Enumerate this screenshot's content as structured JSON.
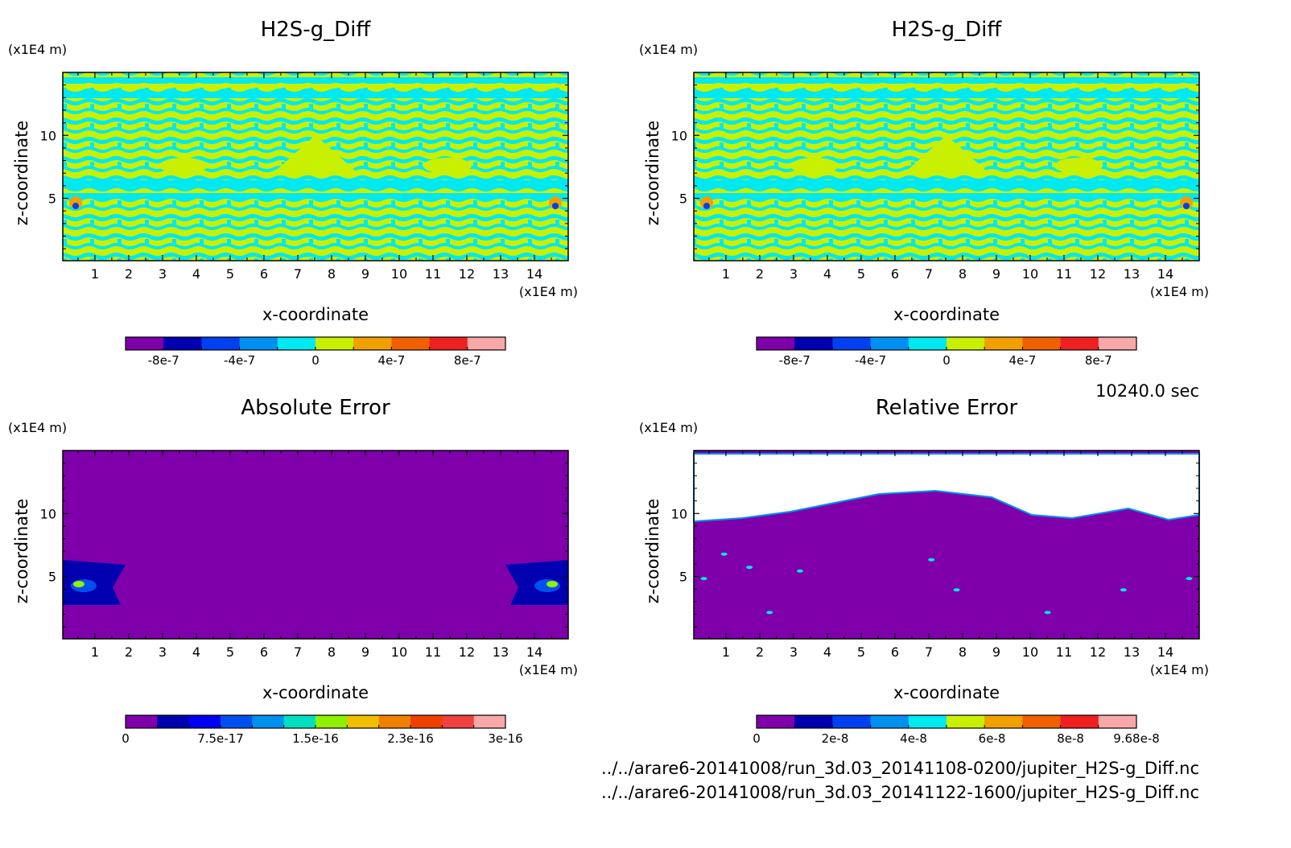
{
  "chart_data": [
    {
      "type": "heatmap",
      "title": "H2S-g_Diff",
      "xlabel": "x-coordinate",
      "ylabel": "z-coordinate",
      "x_unit": "(x1E4 m)",
      "y_unit": "(x1E4 m)",
      "xlim": [
        0.05,
        15.0
      ],
      "ylim": [
        0.05,
        15.0
      ],
      "x_ticks": [
        "1",
        "2",
        "3",
        "4",
        "5",
        "6",
        "7",
        "8",
        "9",
        "10",
        "11",
        "12",
        "13",
        "14"
      ],
      "y_ticks": [
        "5",
        "10"
      ],
      "colorbar": {
        "levels": 11,
        "colors": [
          "#7f00aa",
          "#0000b0",
          "#0040f0",
          "#0090f0",
          "#00e8f0",
          "#c8f000",
          "#f0a000",
          "#f06000",
          "#f02020",
          "#f8a8a8"
        ],
        "tick_labels": [
          "-8e-7",
          "-4e-7",
          "0",
          "4e-7",
          "8e-7"
        ],
        "tick_positions": [
          0.1,
          0.3,
          0.5,
          0.7,
          0.9
        ]
      },
      "pattern": "banded"
    },
    {
      "type": "heatmap",
      "title": "H2S-g_Diff",
      "xlabel": "x-coordinate",
      "ylabel": "z-coordinate",
      "x_unit": "(x1E4 m)",
      "y_unit": "(x1E4 m)",
      "xlim": [
        0.05,
        15.0
      ],
      "ylim": [
        0.05,
        15.0
      ],
      "x_ticks": [
        "1",
        "2",
        "3",
        "4",
        "5",
        "6",
        "7",
        "8",
        "9",
        "10",
        "11",
        "12",
        "13",
        "14"
      ],
      "y_ticks": [
        "5",
        "10"
      ],
      "colorbar": {
        "levels": 11,
        "colors": [
          "#7f00aa",
          "#0000b0",
          "#0040f0",
          "#0090f0",
          "#00e8f0",
          "#c8f000",
          "#f0a000",
          "#f06000",
          "#f02020",
          "#f8a8a8"
        ],
        "tick_labels": [
          "-8e-7",
          "-4e-7",
          "0",
          "4e-7",
          "8e-7"
        ],
        "tick_positions": [
          0.1,
          0.3,
          0.5,
          0.7,
          0.9
        ]
      },
      "pattern": "banded"
    },
    {
      "type": "heatmap",
      "title": "Absolute Error",
      "xlabel": "x-coordinate",
      "ylabel": "z-coordinate",
      "x_unit": "(x1E4 m)",
      "y_unit": "(x1E4 m)",
      "xlim": [
        0.05,
        15.0
      ],
      "ylim": [
        0.05,
        15.0
      ],
      "x_ticks": [
        "1",
        "2",
        "3",
        "4",
        "5",
        "6",
        "7",
        "8",
        "9",
        "10",
        "11",
        "12",
        "13",
        "14"
      ],
      "y_ticks": [
        "5",
        "10"
      ],
      "colorbar": {
        "levels": 13,
        "colors": [
          "#7f00aa",
          "#0000b0",
          "#0000f0",
          "#0050f0",
          "#0090f0",
          "#00e0c0",
          "#90f000",
          "#f0c000",
          "#f08000",
          "#f04000",
          "#f04040",
          "#f8a8a8"
        ],
        "tick_labels": [
          "0",
          "7.5e-17",
          "1.5e-16",
          "2.3e-16",
          "3e-16"
        ],
        "tick_positions": [
          0.0,
          0.25,
          0.5,
          0.75,
          1.0
        ]
      },
      "pattern": "absolute"
    },
    {
      "type": "heatmap",
      "title": "Relative Error",
      "xlabel": "x-coordinate",
      "ylabel": "z-coordinate",
      "x_unit": "(x1E4 m)",
      "y_unit": "(x1E4 m)",
      "xlim": [
        0.05,
        15.0
      ],
      "ylim": [
        0.05,
        15.0
      ],
      "x_ticks": [
        "1",
        "2",
        "3",
        "4",
        "5",
        "6",
        "7",
        "8",
        "9",
        "10",
        "11",
        "12",
        "13",
        "14"
      ],
      "y_ticks": [
        "5",
        "10"
      ],
      "colorbar": {
        "levels": 11,
        "colors": [
          "#7f00aa",
          "#0000b0",
          "#0040f0",
          "#0090f0",
          "#00e8f0",
          "#c8f000",
          "#f0a000",
          "#f06000",
          "#f02020",
          "#f8a8a8"
        ],
        "tick_labels": [
          "0",
          "2e-8",
          "4e-8",
          "6e-8",
          "8e-8",
          "9.68e-8"
        ],
        "tick_positions": [
          0.0,
          0.2066,
          0.4132,
          0.6198,
          0.8264,
          1.0
        ]
      },
      "pattern": "relative"
    }
  ],
  "time_label": "10240.0 sec",
  "file_paths": [
    "../../arare6-20141008/run_3d.03_20141108-0200/jupiter_H2S-g_Diff.nc",
    "../../arare6-20141008/run_3d.03_20141122-1600/jupiter_H2S-g_Diff.nc"
  ]
}
